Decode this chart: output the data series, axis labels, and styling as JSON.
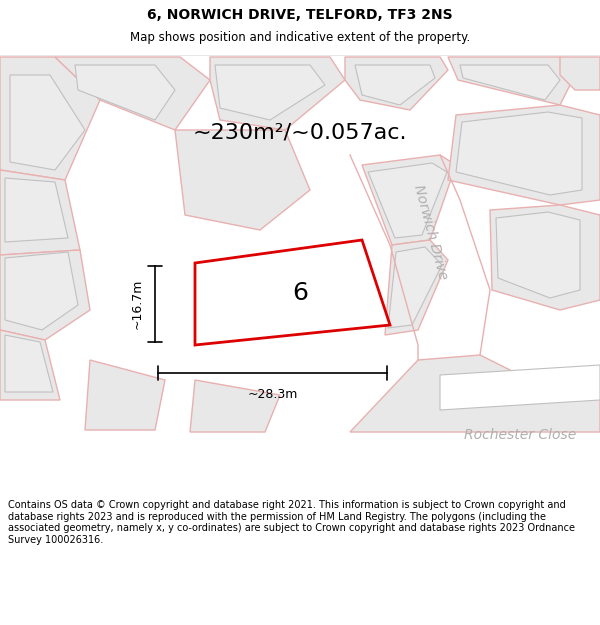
{
  "title": "6, NORWICH DRIVE, TELFORD, TF3 2NS",
  "subtitle": "Map shows position and indicative extent of the property.",
  "area_text": "~230m²/~0.057ac.",
  "number_label": "6",
  "width_label": "~28.3m",
  "height_label": "~16.7m",
  "street_label1": "Norwich Drive",
  "street_label2": "Rochester Close",
  "footer": "Contains OS data © Crown copyright and database right 2021. This information is subject to Crown copyright and database rights 2023 and is reproduced with the permission of HM Land Registry. The polygons (including the associated geometry, namely x, y co-ordinates) are subject to Crown copyright and database rights 2023 Ordnance Survey 100026316.",
  "bg_color": "#ffffff",
  "parcel_fill": "#e8e8e8",
  "parcel_edge_pink": "#e8b0b0",
  "parcel_edge_gray": "#c0c0c0",
  "highlight_color": "#dd0000",
  "street_text_color": "#b0b0b0",
  "title_fontsize": 10,
  "subtitle_fontsize": 8.5,
  "area_fontsize": 16,
  "dim_fontsize": 9,
  "street_fontsize": 10,
  "number_fontsize": 18,
  "footer_fontsize": 7
}
